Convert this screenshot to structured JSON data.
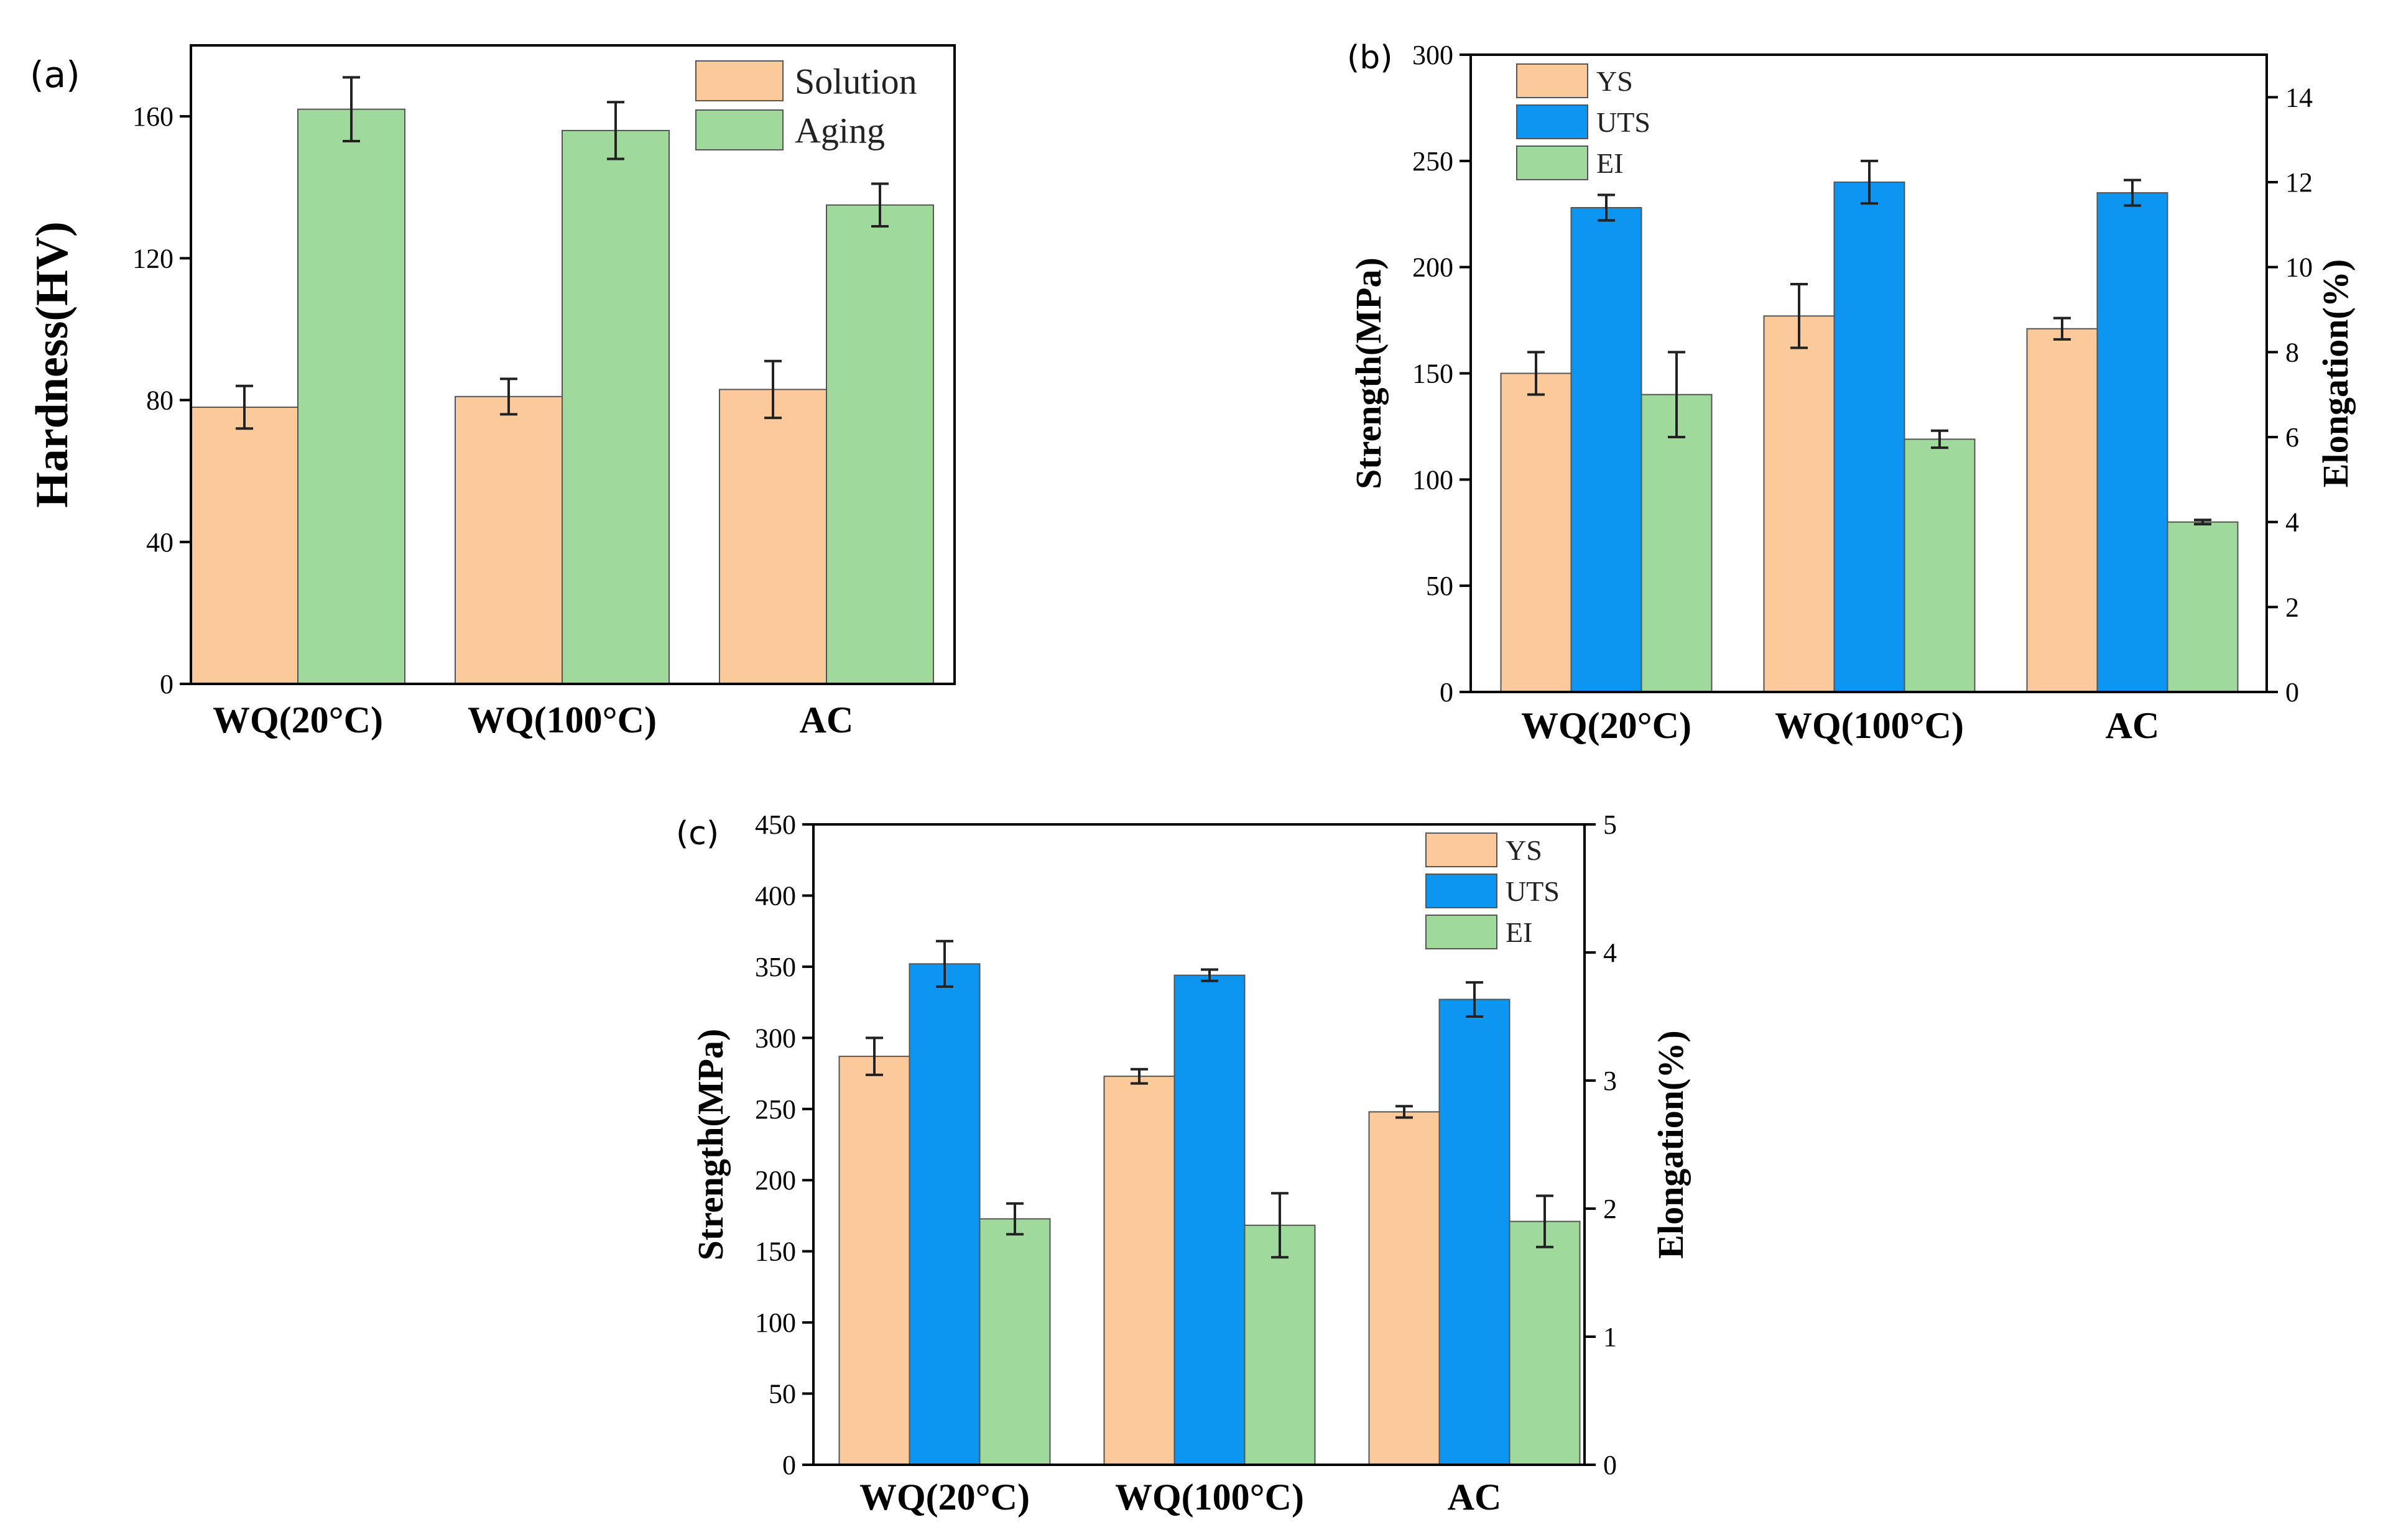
{
  "colors": {
    "solution": "#fcc99a",
    "aging": "#9fd99c",
    "ys": "#fcc99a",
    "uts": "#0c96f2",
    "el": "#9fd99c",
    "bar_stroke": "#555555",
    "axis": "#000000",
    "error_bar": "#222222"
  },
  "chart_data": [
    {
      "id": "a",
      "panel_label": "(a)",
      "type": "bar",
      "categories": [
        "WQ(20°C)",
        "WQ(100°C)",
        "AC"
      ],
      "series": [
        {
          "name": "Solution",
          "color_key": "solution",
          "values": [
            78,
            81,
            83
          ],
          "errors": [
            6,
            5,
            8
          ]
        },
        {
          "name": "Aging",
          "color_key": "aging",
          "values": [
            162,
            156,
            135
          ],
          "errors": [
            9,
            8,
            6
          ]
        }
      ],
      "ylabel": "Hardness(HV)",
      "ylim": [
        0,
        180
      ],
      "yticks": [
        0,
        40,
        80,
        120,
        160
      ],
      "legend_position": "top-right"
    },
    {
      "id": "b",
      "panel_label": "(b)",
      "type": "bar",
      "categories": [
        "WQ(20°C)",
        "WQ(100°C)",
        "AC"
      ],
      "series": [
        {
          "name": "YS",
          "axis": "left",
          "color_key": "ys",
          "values": [
            150,
            177,
            171
          ],
          "errors": [
            10,
            15,
            5
          ]
        },
        {
          "name": "UTS",
          "axis": "left",
          "color_key": "uts",
          "values": [
            228,
            240,
            235
          ],
          "errors": [
            6,
            10,
            6
          ]
        },
        {
          "name": "EI",
          "axis": "right",
          "color_key": "el",
          "values": [
            7.0,
            5.95,
            4.0
          ],
          "errors": [
            1.0,
            0.2,
            0.05
          ]
        }
      ],
      "ylabel": "Strength(MPa)",
      "ylabel_right": "Elongation(%)",
      "ylim": [
        0,
        300
      ],
      "yticks": [
        0,
        50,
        100,
        150,
        200,
        250,
        300
      ],
      "ylim_right": [
        0,
        15
      ],
      "yticks_right": [
        0,
        2,
        4,
        6,
        8,
        10,
        12,
        14
      ],
      "legend_position": "top-left"
    },
    {
      "id": "c",
      "panel_label": "(c)",
      "type": "bar",
      "categories": [
        "WQ(20°C)",
        "WQ(100°C)",
        "AC"
      ],
      "series": [
        {
          "name": "YS",
          "axis": "left",
          "color_key": "ys",
          "values": [
            287,
            273,
            248
          ],
          "errors": [
            13,
            5,
            4
          ]
        },
        {
          "name": "UTS",
          "axis": "left",
          "color_key": "uts",
          "values": [
            352,
            344,
            327
          ],
          "errors": [
            16,
            4,
            12
          ]
        },
        {
          "name": "EI",
          "axis": "right",
          "color_key": "el",
          "values": [
            1.92,
            1.87,
            1.9
          ],
          "errors": [
            0.12,
            0.25,
            0.2
          ]
        }
      ],
      "ylabel": "Strength(MPa)",
      "ylabel_right": "Elongation(%)",
      "ylim": [
        0,
        450
      ],
      "yticks": [
        0,
        50,
        100,
        150,
        200,
        250,
        300,
        350,
        400,
        450
      ],
      "ylim_right": [
        0,
        5
      ],
      "yticks_right": [
        0,
        1,
        2,
        3,
        4,
        5
      ],
      "legend_position": "top-right"
    }
  ]
}
